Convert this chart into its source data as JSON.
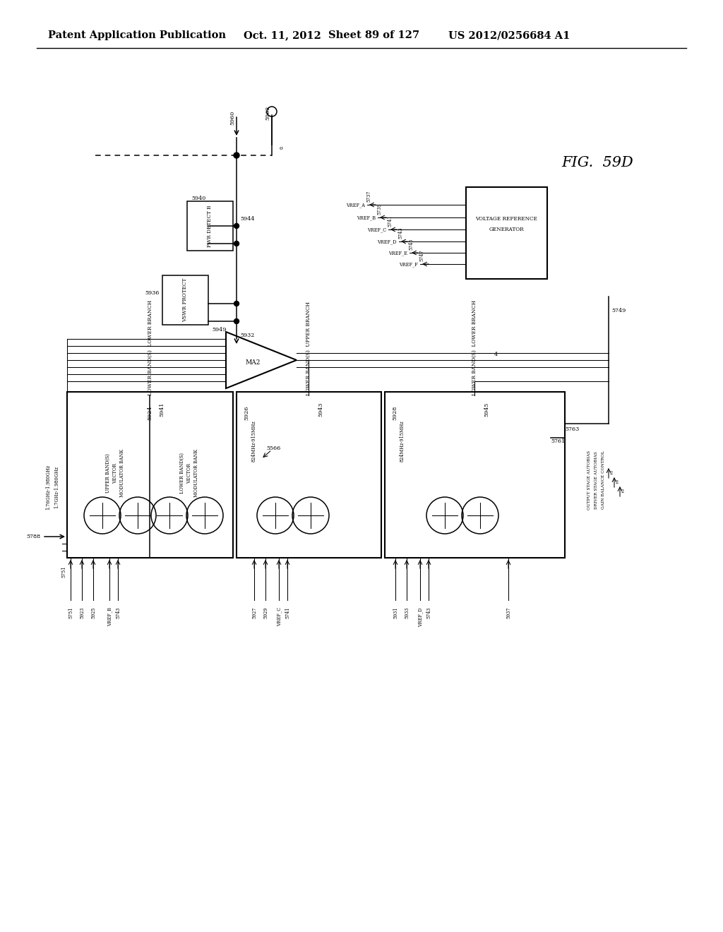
{
  "bg": "#ffffff",
  "hdr1": "Patent Application Publication",
  "hdr2": "Oct. 11, 2012",
  "hdr3": "Sheet 89 of 127",
  "hdr4": "US 2012/0256684 A1",
  "fig_label": "FIG.  59D",
  "lw": 1.1,
  "lw2": 1.5,
  "lw3": 0.75
}
